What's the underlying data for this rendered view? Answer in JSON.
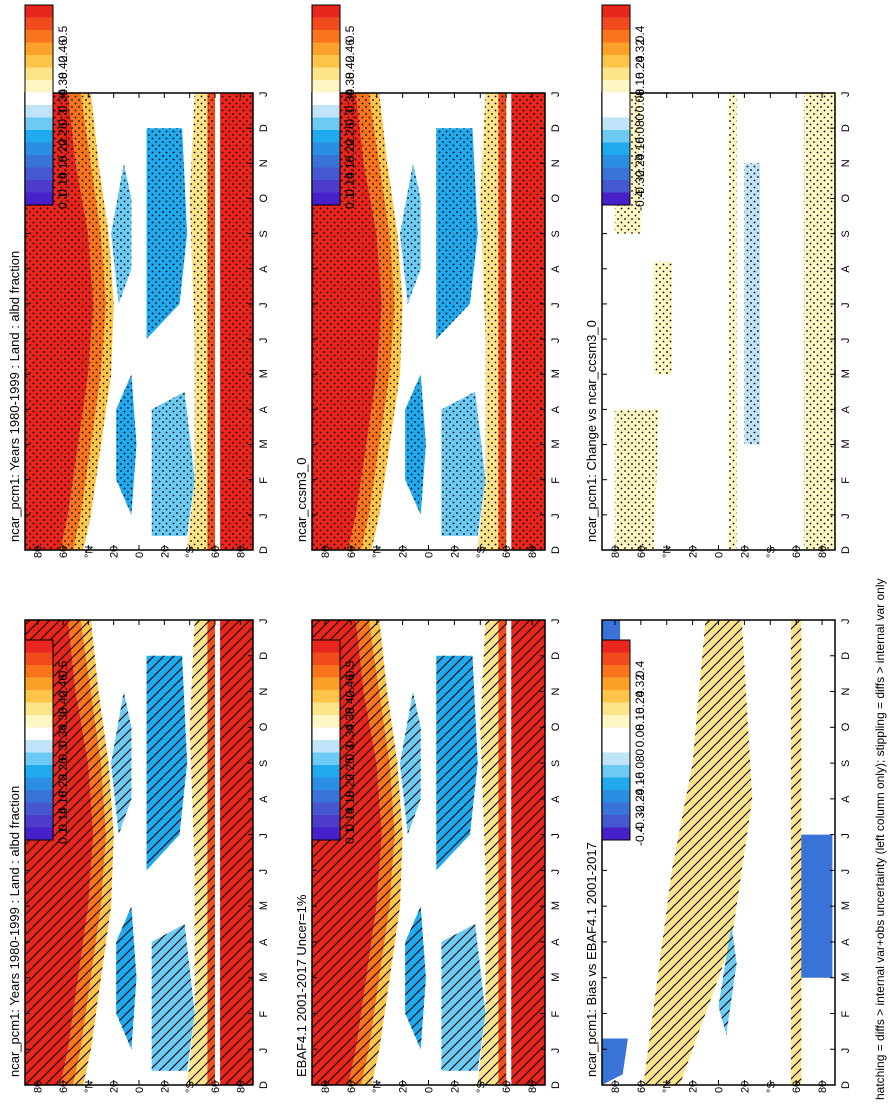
{
  "figure": {
    "footnote": "hatching = diffs > internal var+obs uncertainty (left column only); stippling = diffs > internal var only",
    "lat_tick_labels": [
      "80",
      "60",
      "°N",
      "20",
      "0",
      "20",
      "°S",
      "60",
      "80"
    ],
    "month_tick_labels": [
      "D",
      "J",
      "F",
      "M",
      "A",
      "M",
      "J",
      "J",
      "A",
      "S",
      "O",
      "N",
      "D",
      "J"
    ]
  },
  "chart_data": [
    {
      "id": "model-left",
      "type": "heatmap",
      "title": "ncar_pcm1: Years 1980-1999 : Land : albd fraction",
      "x": "month",
      "y": "latitude",
      "overlay": "hatching",
      "colorbar_labels": [
        "0.5",
        "0.46",
        "0.42",
        "0.38",
        "0.34",
        "0.3",
        "0.26",
        "0.22",
        "0.18",
        "0.14",
        "0.1"
      ],
      "colorbar_colors": [
        "#e8261e",
        "#f04a1d",
        "#f8751e",
        "#fba12a",
        "#fcc54a",
        "#fbe48a",
        "#fff6c4",
        "#ffffff",
        "#bfe4f7",
        "#6ccaf3",
        "#21a9ee",
        "#2a8fe2",
        "#3973d8",
        "#4557d1",
        "#4d3cca",
        "#4621ca"
      ]
    },
    {
      "id": "model-right",
      "type": "heatmap",
      "title": "ncar_pcm1: Years 1980-1999 : Land : albd fraction",
      "x": "month",
      "y": "latitude",
      "overlay": "stippling",
      "colorbar_labels": [
        "0.5",
        "0.46",
        "0.42",
        "0.38",
        "0.34",
        "0.3",
        "0.26",
        "0.22",
        "0.18",
        "0.14",
        "0.1"
      ],
      "colorbar_colors": [
        "#e8261e",
        "#f04a1d",
        "#f8751e",
        "#fba12a",
        "#fcc54a",
        "#fbe48a",
        "#fff6c4",
        "#ffffff",
        "#bfe4f7",
        "#6ccaf3",
        "#21a9ee",
        "#2a8fe2",
        "#3973d8",
        "#4557d1",
        "#4d3cca",
        "#4621ca"
      ]
    },
    {
      "id": "obs",
      "type": "heatmap",
      "title": "EBAF4.1 2001-2017 Uncer=1%",
      "x": "month",
      "y": "latitude",
      "overlay": "hatching",
      "colorbar_labels": [
        "0.5",
        "0.46",
        "0.42",
        "0.38",
        "0.34",
        "0.3",
        "0.26",
        "0.22",
        "0.18",
        "0.14",
        "0.1"
      ],
      "colorbar_colors": [
        "#e8261e",
        "#f04a1d",
        "#f8751e",
        "#fba12a",
        "#fcc54a",
        "#fbe48a",
        "#fff6c4",
        "#ffffff",
        "#bfe4f7",
        "#6ccaf3",
        "#21a9ee",
        "#2a8fe2",
        "#3973d8",
        "#4557d1",
        "#4d3cca",
        "#4621ca"
      ]
    },
    {
      "id": "ref-model",
      "type": "heatmap",
      "title": "ncar_ccsm3_0",
      "x": "month",
      "y": "latitude",
      "overlay": "stippling",
      "colorbar_labels": [
        "0.5",
        "0.46",
        "0.42",
        "0.38",
        "0.34",
        "0.3",
        "0.26",
        "0.22",
        "0.18",
        "0.14",
        "0.1"
      ],
      "colorbar_colors": [
        "#e8261e",
        "#f04a1d",
        "#f8751e",
        "#fba12a",
        "#fcc54a",
        "#fbe48a",
        "#fff6c4",
        "#ffffff",
        "#bfe4f7",
        "#6ccaf3",
        "#21a9ee",
        "#2a8fe2",
        "#3973d8",
        "#4557d1",
        "#4d3cca",
        "#4621ca"
      ]
    },
    {
      "id": "bias",
      "type": "heatmap",
      "title": "ncar_pcm1: Bias vs EBAF4.1 2001-2017",
      "x": "month",
      "y": "latitude",
      "overlay": "hatching",
      "colorbar_labels": [
        "0.4",
        "0.32",
        "0.24",
        "0.16",
        "0.08",
        "0",
        "-0.08",
        "-0.16",
        "-0.24",
        "-0.32",
        "-0.4"
      ],
      "colorbar_colors": [
        "#e8261e",
        "#f04a1d",
        "#f8751e",
        "#fba12a",
        "#fcc54a",
        "#fbe48a",
        "#fff6c4",
        "#ffffff",
        "#ffffff",
        "#bfe4f7",
        "#6ccaf3",
        "#21a9ee",
        "#2a8fe2",
        "#3973d8",
        "#4557d1",
        "#4621ca"
      ]
    },
    {
      "id": "change",
      "type": "heatmap",
      "title": "ncar_pcm1: Change vs ncar_ccsm3_0",
      "x": "month",
      "y": "latitude",
      "overlay": "stippling",
      "colorbar_labels": [
        "0.4",
        "0.32",
        "0.24",
        "0.16",
        "0.08",
        "0",
        "-0.08",
        "-0.16",
        "-0.24",
        "-0.32",
        "-0.4"
      ],
      "colorbar_colors": [
        "#e8261e",
        "#f04a1d",
        "#f8751e",
        "#fba12a",
        "#fcc54a",
        "#fbe48a",
        "#fff6c4",
        "#ffffff",
        "#ffffff",
        "#bfe4f7",
        "#6ccaf3",
        "#21a9ee",
        "#2a8fe2",
        "#3973d8",
        "#4557d1",
        "#4621ca"
      ]
    }
  ]
}
